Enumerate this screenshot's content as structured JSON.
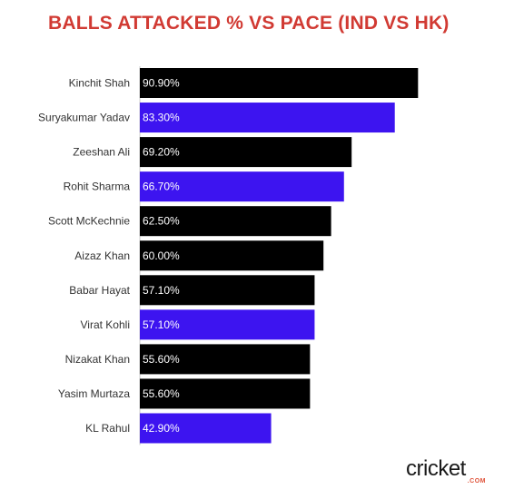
{
  "colors": {
    "title": "#d13a33",
    "ind": "#3d14f0",
    "hk": "#000000",
    "bar_label": "#ffffff",
    "axis_label": "#333333"
  },
  "chart_data": {
    "type": "bar",
    "orientation": "horizontal",
    "title": "BALLS ATTACKED % VS PACE (IND VS HK)",
    "xlabel": "",
    "ylabel": "",
    "xlim": [
      0,
      100
    ],
    "grid": false,
    "categories": [
      "Kinchit Shah",
      "Suryakumar Yadav",
      "Zeeshan Ali",
      "Rohit Sharma",
      "Scott McKechnie",
      "Aizaz Khan",
      "Babar Hayat",
      "Virat Kohli",
      "Nizakat Khan",
      "Yasim Murtaza",
      "KL Rahul"
    ],
    "values": [
      90.9,
      83.3,
      69.2,
      66.7,
      62.5,
      60.0,
      57.1,
      57.1,
      55.6,
      55.6,
      42.9
    ],
    "value_labels": [
      "90.90%",
      "83.30%",
      "69.20%",
      "66.70%",
      "62.50%",
      "60.00%",
      "57.10%",
      "57.10%",
      "55.60%",
      "55.60%",
      "42.90%"
    ],
    "bar_colors": [
      "#000000",
      "#3d14f0",
      "#000000",
      "#3d14f0",
      "#000000",
      "#000000",
      "#000000",
      "#3d14f0",
      "#000000",
      "#000000",
      "#3d14f0"
    ]
  },
  "logo": {
    "text": "cricket",
    "suffix": ".COM"
  }
}
